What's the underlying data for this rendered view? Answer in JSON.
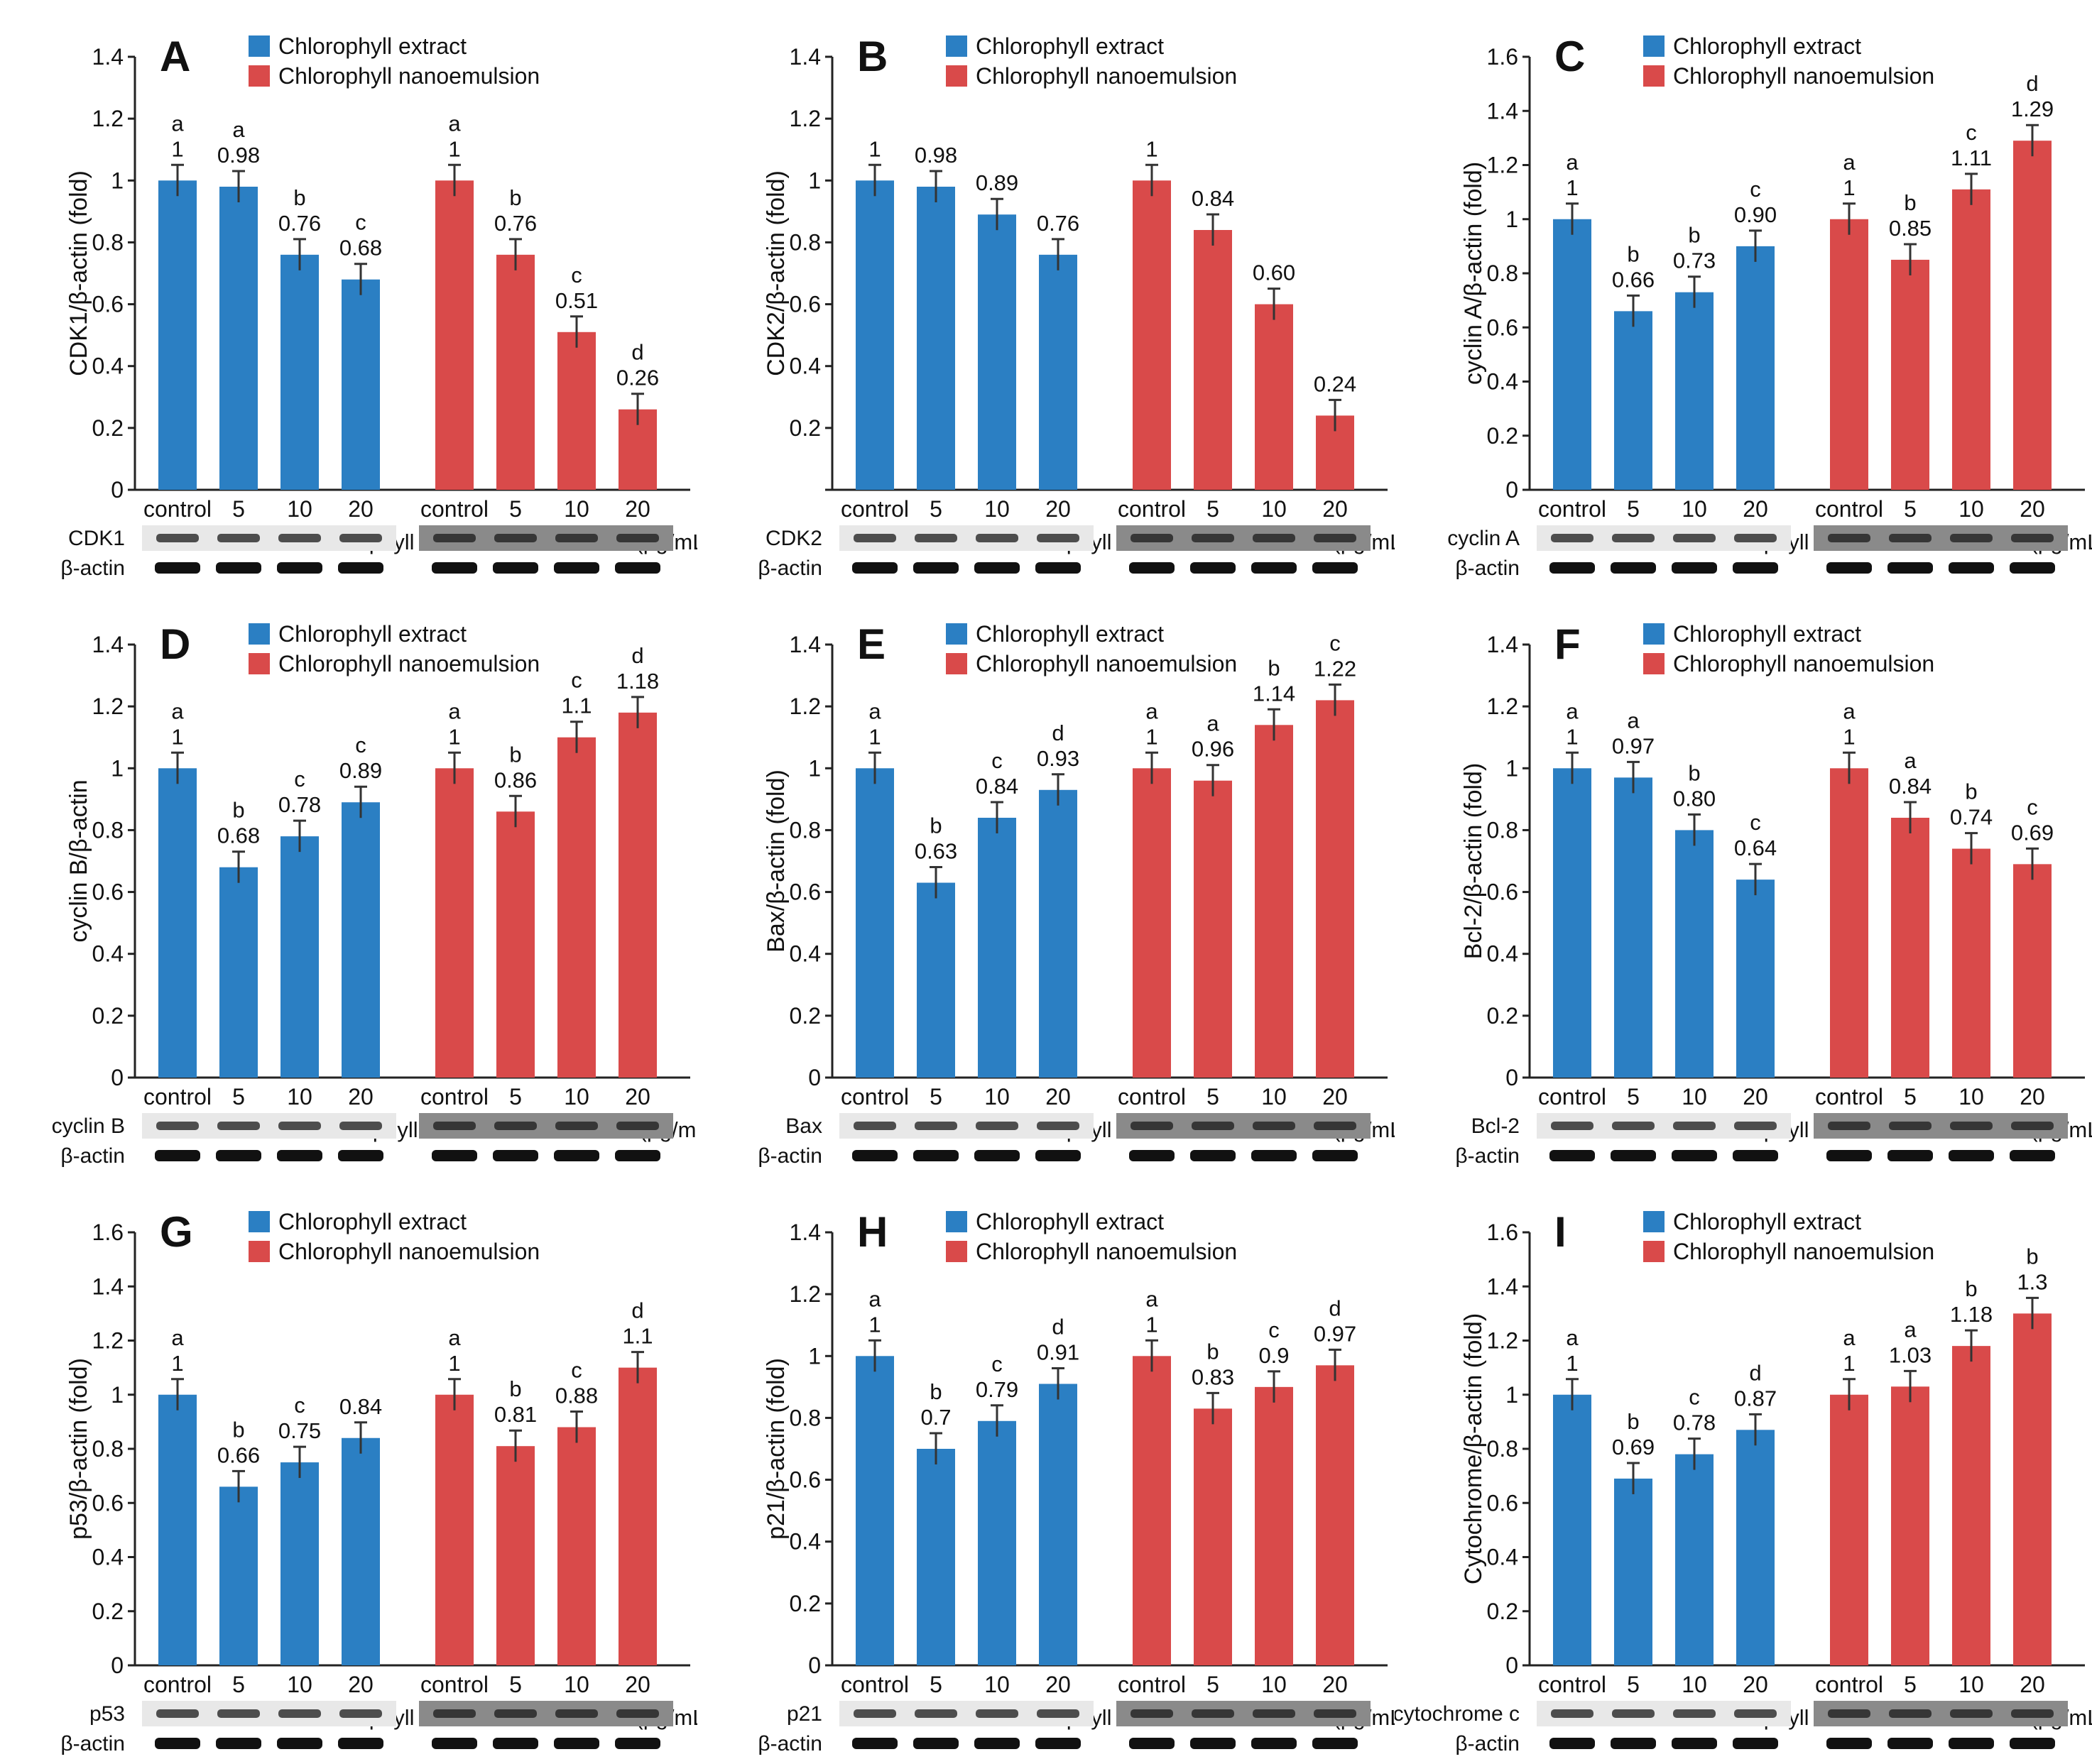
{
  "figure": {
    "colors": {
      "extract": "#2b7fc3",
      "nanoemulsion": "#d94a4a",
      "axis": "#222222",
      "text": "#111111"
    },
    "legend": {
      "extract": "Chlorophyll extract",
      "nanoemulsion": "Chlorophyll nanoemulsion"
    },
    "xlabel": "Concentration of chlorophyll extract/nanoemulsion (µg/mL)",
    "categories": [
      "control",
      "5",
      "10",
      "20"
    ],
    "reference_band": "β-actin"
  },
  "chart_data": [
    {
      "panel": "A",
      "type": "bar",
      "ylabel": "CDK1/β-actin (fold)",
      "ylim": [
        0,
        1.4
      ],
      "yticks": [
        "0",
        "0.2",
        "0.4",
        "0.6",
        "0.8",
        "1",
        "1.2",
        "1.4"
      ],
      "categories": [
        "control",
        "5",
        "10",
        "20"
      ],
      "xlabel": "Concentration of chlorophyll extract/nanoemulsion (µg/mL)",
      "band": "CDK1",
      "series": [
        {
          "name": "Chlorophyll extract",
          "values": [
            1,
            0.98,
            0.76,
            0.68
          ],
          "labels": [
            "1",
            "0.98",
            "0.76",
            "0.68"
          ],
          "letters": [
            "a",
            "a",
            "b",
            "c"
          ]
        },
        {
          "name": "Chlorophyll nanoemulsion",
          "values": [
            1,
            0.76,
            0.51,
            0.26
          ],
          "labels": [
            "1",
            "0.76",
            "0.51",
            "0.26"
          ],
          "letters": [
            "a",
            "b",
            "c",
            "d"
          ]
        }
      ]
    },
    {
      "panel": "B",
      "type": "bar",
      "ylabel": "CDK2/β-actin (fold)",
      "ylim": [
        0,
        1.4
      ],
      "yticks": [
        "",
        "0.2",
        "0.4",
        "0.6",
        "0.8",
        "1",
        "1.2",
        "1.4"
      ],
      "categories": [
        "control",
        "5",
        "10",
        "20"
      ],
      "xlabel": "Concentration of chlorophyll extract/nanoemulsion (µg/mL)",
      "band": "CDK2",
      "series": [
        {
          "name": "Chlorophyll extract",
          "values": [
            1,
            0.98,
            0.89,
            0.76
          ],
          "labels": [
            "1",
            "0.98",
            "0.89",
            "0.76"
          ],
          "letters": [
            "",
            "",
            "",
            ""
          ]
        },
        {
          "name": "Chlorophyll nanoemulsion",
          "values": [
            1,
            0.84,
            0.6,
            0.24
          ],
          "labels": [
            "1",
            "0.84",
            "0.60",
            "0.24"
          ],
          "letters": [
            "",
            "",
            "",
            ""
          ]
        }
      ]
    },
    {
      "panel": "C",
      "type": "bar",
      "ylabel": "cyclin A/β-actin (fold)",
      "ylim": [
        0,
        1.6
      ],
      "yticks": [
        "0",
        "0.2",
        "0.4",
        "0.6",
        "0.8",
        "1",
        "1.2",
        "1.4",
        "1.6"
      ],
      "categories": [
        "control",
        "5",
        "10",
        "20"
      ],
      "xlabel": "Concentration of chlorophyll extract/nanoemulsion (µg/mL)",
      "band": "cyclin A",
      "series": [
        {
          "name": "Chlorophyll extract",
          "values": [
            1,
            0.66,
            0.73,
            0.9
          ],
          "labels": [
            "1",
            "0.66",
            "0.73",
            "0.90"
          ],
          "letters": [
            "a",
            "b",
            "b",
            "c"
          ]
        },
        {
          "name": "Chlorophyll nanoemulsion",
          "values": [
            1,
            0.85,
            1.11,
            1.29
          ],
          "labels": [
            "1",
            "0.85",
            "1.11",
            "1.29"
          ],
          "letters": [
            "a",
            "b",
            "c",
            "d"
          ]
        }
      ]
    },
    {
      "panel": "D",
      "type": "bar",
      "ylabel": "cyclin B/β-actin",
      "ylim": [
        0,
        1.4
      ],
      "yticks": [
        "0",
        "0.2",
        "0.4",
        "0.6",
        "0.8",
        "1",
        "1.2",
        "1.4"
      ],
      "categories": [
        "control",
        "5",
        "10",
        "20"
      ],
      "xlabel": "Concentration of chlorophyll extract/nanoemulsion (µg/mL",
      "band": "cyclin B",
      "series": [
        {
          "name": "Chlorophyll extract",
          "values": [
            1,
            0.68,
            0.78,
            0.89
          ],
          "labels": [
            "1",
            "0.68",
            "0.78",
            "0.89"
          ],
          "letters": [
            "a",
            "b",
            "c",
            "c"
          ]
        },
        {
          "name": "Chlorophyll nanoemulsion",
          "values": [
            1,
            0.86,
            1.1,
            1.18
          ],
          "labels": [
            "1",
            "0.86",
            "1.1",
            "1.18"
          ],
          "letters": [
            "a",
            "b",
            "c",
            "d"
          ]
        }
      ]
    },
    {
      "panel": "E",
      "type": "bar",
      "ylabel": "Bax/β-actin (fold)",
      "ylim": [
        0,
        1.4
      ],
      "yticks": [
        "0",
        "0.2",
        "0.4",
        "0.6",
        "0.8",
        "1",
        "1.2",
        "1.4"
      ],
      "categories": [
        "control",
        "5",
        "10",
        "20"
      ],
      "xlabel": "Concentration of chlorophyll extract/nanoemulsion (µg/mL)",
      "band": "Bax",
      "series": [
        {
          "name": "Chlorophyll extract",
          "values": [
            1,
            0.63,
            0.84,
            0.93
          ],
          "labels": [
            "1",
            "0.63",
            "0.84",
            "0.93"
          ],
          "letters": [
            "a",
            "b",
            "c",
            "d"
          ]
        },
        {
          "name": "Chlorophyll nanoemulsion",
          "values": [
            1,
            0.96,
            1.14,
            1.22
          ],
          "labels": [
            "1",
            "0.96",
            "1.14",
            "1.22"
          ],
          "letters": [
            "a",
            "a",
            "b",
            "c"
          ]
        }
      ]
    },
    {
      "panel": "F",
      "type": "bar",
      "ylabel": "Bcl-2/β-actin (fold)",
      "ylim": [
        0,
        1.4
      ],
      "yticks": [
        "0",
        "0.2",
        "0.4",
        "0.6",
        "0.8",
        "1",
        "1.2",
        "1.4"
      ],
      "categories": [
        "control",
        "5",
        "10",
        "20"
      ],
      "xlabel": "Concentration of chlorophyll extract/nanoemulsion (µg/mL)",
      "band": "Bcl-2",
      "series": [
        {
          "name": "Chlorophyll extract",
          "values": [
            1,
            0.97,
            0.8,
            0.64
          ],
          "labels": [
            "1",
            "0.97",
            "0.80",
            "0.64"
          ],
          "letters": [
            "a",
            "a",
            "b",
            "c"
          ]
        },
        {
          "name": "Chlorophyll nanoemulsion",
          "values": [
            1,
            0.84,
            0.74,
            0.69
          ],
          "labels": [
            "1",
            "0.84",
            "0.74",
            "0.69"
          ],
          "letters": [
            "a",
            "a",
            "b",
            "c"
          ]
        }
      ]
    },
    {
      "panel": "G",
      "type": "bar",
      "ylabel": "p53/β-actin (fold)",
      "ylim": [
        0,
        1.6
      ],
      "yticks": [
        "0",
        "0.2",
        "0.4",
        "0.6",
        "0.8",
        "1",
        "1.2",
        "1.4",
        "1.6"
      ],
      "categories": [
        "control",
        "5",
        "10",
        "20"
      ],
      "xlabel": "Concentration of chlorophyll extract/nanoemulsion (µg/mL)",
      "band": "p53",
      "series": [
        {
          "name": "Chlorophyll extract",
          "values": [
            1,
            0.66,
            0.75,
            0.84
          ],
          "labels": [
            "1",
            "0.66",
            "0.75",
            "0.84"
          ],
          "letters": [
            "a",
            "b",
            "c",
            ""
          ]
        },
        {
          "name": "Chlorophyll nanoemulsion",
          "values": [
            1,
            0.81,
            0.88,
            1.1
          ],
          "labels": [
            "1",
            "0.81",
            "0.88",
            "1.1"
          ],
          "letters": [
            "a",
            "b",
            "c",
            "d"
          ]
        }
      ]
    },
    {
      "panel": "H",
      "type": "bar",
      "ylabel": "p21/β-actin (fold)",
      "ylim": [
        0,
        1.4
      ],
      "yticks": [
        "0",
        "0.2",
        "0.4",
        "0.6",
        "0.8",
        "1",
        "1.2",
        "1.4"
      ],
      "categories": [
        "control",
        "5",
        "10",
        "20"
      ],
      "xlabel": "Concentration of chlorophyll extract/nanoemulsion (µg/mL)",
      "band": "p21",
      "series": [
        {
          "name": "Chlorophyll extract",
          "values": [
            1,
            0.7,
            0.79,
            0.91
          ],
          "labels": [
            "1",
            "0.7",
            "0.79",
            "0.91"
          ],
          "letters": [
            "a",
            "b",
            "c",
            "d"
          ]
        },
        {
          "name": "Chlorophyll nanoemulsion",
          "values": [
            1,
            0.83,
            0.9,
            0.97
          ],
          "labels": [
            "1",
            "0.83",
            "0.9",
            "0.97"
          ],
          "letters": [
            "a",
            "b",
            "c",
            "d"
          ]
        }
      ]
    },
    {
      "panel": "I",
      "type": "bar",
      "ylabel": "Cytochrome/β-actin (fold)",
      "ylim": [
        0,
        1.6
      ],
      "yticks": [
        "0",
        "0.2",
        "0.4",
        "0.6",
        "0.8",
        "1",
        "1.2",
        "1.4",
        "1.6"
      ],
      "categories": [
        "control",
        "5",
        "10",
        "20"
      ],
      "xlabel": "Concentration of chlorophyll extract/nanoemulsion (µg/mL)",
      "band": "cytochrome c",
      "series": [
        {
          "name": "Chlorophyll extract",
          "values": [
            1,
            0.69,
            0.78,
            0.87
          ],
          "labels": [
            "1",
            "0.69",
            "0.78",
            "0.87"
          ],
          "letters": [
            "a",
            "b",
            "c",
            "d"
          ]
        },
        {
          "name": "Chlorophyll nanoemulsion",
          "values": [
            1,
            1.03,
            1.18,
            1.3
          ],
          "labels": [
            "1",
            "1.03",
            "1.18",
            "1.3"
          ],
          "letters": [
            "a",
            "a",
            "b",
            "b"
          ]
        }
      ]
    }
  ]
}
